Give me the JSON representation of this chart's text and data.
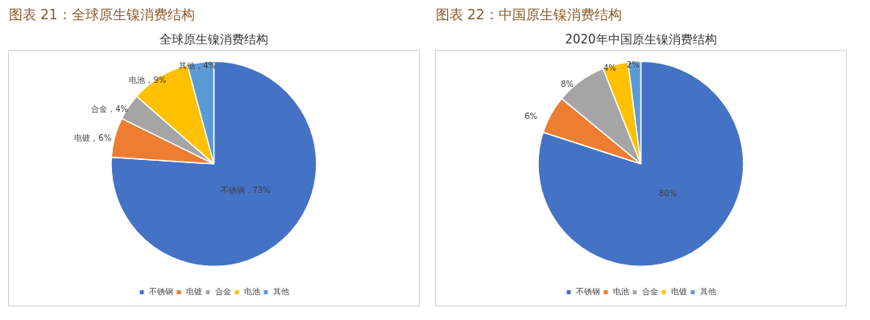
{
  "chart_data": [
    {
      "type": "pie",
      "title": "图表 21：全球原生镍消费结构",
      "subtitle": "全球原生镍消费结构",
      "categories": [
        "不锈钢",
        "电镀",
        "合金",
        "电池",
        "其他"
      ],
      "values": [
        73,
        6,
        4,
        9,
        4
      ],
      "colors": [
        "#4472c4",
        "#ed7d31",
        "#a5a5a5",
        "#ffc000",
        "#5b9bd5"
      ],
      "value_labels": [
        "不锈钢，73%",
        "电镀，6%",
        "合金，4%",
        "电池，9%",
        "其他，4%"
      ],
      "legend": "bottom"
    },
    {
      "type": "pie",
      "title": "图表 22：中国原生镍消费结构",
      "subtitle": "2020年中国原生镍消费结构",
      "categories": [
        "不锈钢",
        "电池",
        "合金",
        "电镀",
        "其他"
      ],
      "values": [
        80,
        6,
        8,
        4,
        2
      ],
      "colors": [
        "#4472c4",
        "#ed7d31",
        "#a5a5a5",
        "#ffc000",
        "#5b9bd5"
      ],
      "value_labels": [
        "80%",
        "6%",
        "8%",
        "4%",
        "2%"
      ],
      "legend": "bottom"
    }
  ]
}
